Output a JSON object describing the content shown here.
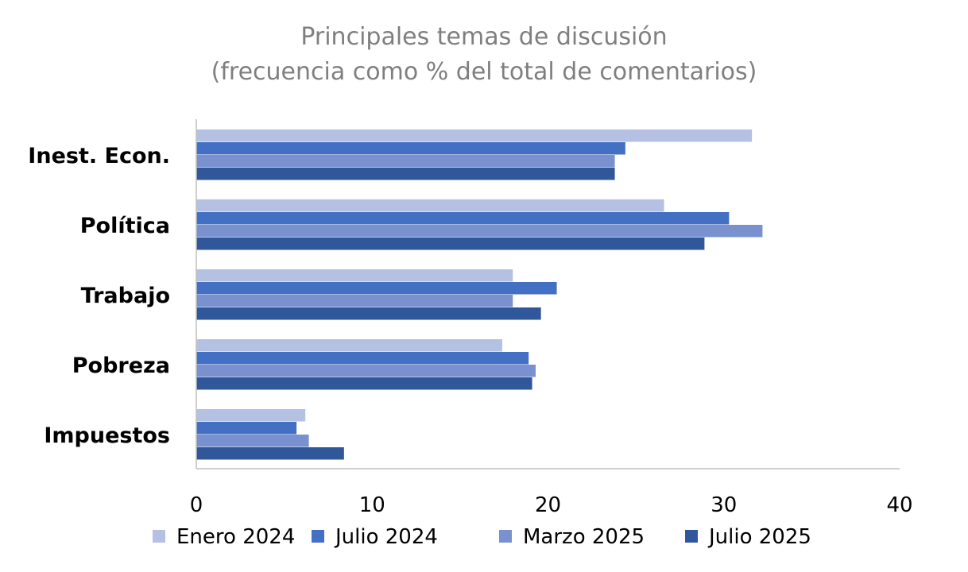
{
  "chart_data": {
    "type": "bar",
    "orientation": "horizontal",
    "title": "Principales temas de discusión",
    "subtitle": "(frecuencia como % del total de comentarios)",
    "categories": [
      "Inest. Econ.",
      "Política",
      "Trabajo",
      "Pobreza",
      "Impuestos"
    ],
    "series": [
      {
        "name": "Enero 2024",
        "color": "#b4c1e3",
        "values": [
          31.6,
          26.6,
          18.0,
          17.4,
          6.2
        ]
      },
      {
        "name": "Julio 2024",
        "color": "#4470c4",
        "values": [
          24.4,
          30.3,
          20.5,
          18.9,
          5.7
        ]
      },
      {
        "name": "Marzo 2025",
        "color": "#7991cf",
        "values": [
          23.8,
          32.2,
          18.0,
          19.3,
          6.4
        ]
      },
      {
        "name": "Julio 2025",
        "color": "#30579a",
        "values": [
          23.8,
          28.9,
          19.6,
          19.1,
          8.4
        ]
      }
    ],
    "xlim": [
      0,
      40
    ],
    "xticks": [
      "0",
      "10",
      "20",
      "30",
      "40"
    ],
    "xlabel": "",
    "ylabel": "",
    "grid": false,
    "legend": "bottom"
  }
}
